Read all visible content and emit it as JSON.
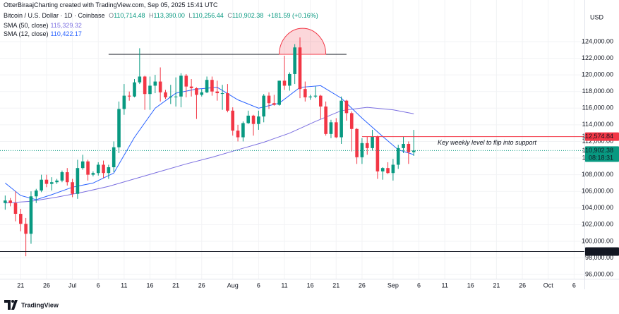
{
  "chart_data": {
    "type": "candlestick",
    "header": {
      "author": "OtterBiraajCharting created with TradingView.com, Sep 05, 2025 15:41 UTC",
      "symbol": "Bitcoin / U.S. Dollar · 1D · Coinbase",
      "ohlc": [
        {
          "label": "O",
          "value": "110,714.48"
        },
        {
          "label": "H",
          "value": "113,390.00"
        },
        {
          "label": "L",
          "value": "110,256.44"
        },
        {
          "label": "C",
          "value": "110,902.38"
        }
      ],
      "change": "+181.59 (+0.16%)"
    },
    "currency": "USD",
    "watermark": "TradingView",
    "up_color": "#089981",
    "down_color": "#f23645",
    "grid": true,
    "x": [
      "2025-06-18",
      "2025-06-19",
      "2025-06-20",
      "2025-06-21",
      "2025-06-22",
      "2025-06-23",
      "2025-06-24",
      "2025-06-25",
      "2025-06-26",
      "2025-06-27",
      "2025-06-28",
      "2025-06-29",
      "2025-06-30",
      "2025-07-01",
      "2025-07-02",
      "2025-07-03",
      "2025-07-04",
      "2025-07-05",
      "2025-07-06",
      "2025-07-07",
      "2025-07-08",
      "2025-07-09",
      "2025-07-10",
      "2025-07-11",
      "2025-07-12",
      "2025-07-13",
      "2025-07-14",
      "2025-07-15",
      "2025-07-16",
      "2025-07-17",
      "2025-07-18",
      "2025-07-19",
      "2025-07-20",
      "2025-07-21",
      "2025-07-22",
      "2025-07-23",
      "2025-07-24",
      "2025-07-25",
      "2025-07-26",
      "2025-07-27",
      "2025-07-28",
      "2025-07-29",
      "2025-07-30",
      "2025-07-31",
      "2025-08-01",
      "2025-08-02",
      "2025-08-03",
      "2025-08-04",
      "2025-08-05",
      "2025-08-06",
      "2025-08-07",
      "2025-08-08",
      "2025-08-09",
      "2025-08-10",
      "2025-08-11",
      "2025-08-12",
      "2025-08-13",
      "2025-08-14",
      "2025-08-15",
      "2025-08-16",
      "2025-08-17",
      "2025-08-18",
      "2025-08-19",
      "2025-08-20",
      "2025-08-21",
      "2025-08-22",
      "2025-08-23",
      "2025-08-24",
      "2025-08-25",
      "2025-08-26",
      "2025-08-27",
      "2025-08-28",
      "2025-08-29",
      "2025-08-30",
      "2025-08-31",
      "2025-09-01",
      "2025-09-02",
      "2025-09-03",
      "2025-09-04",
      "2025-09-05"
    ],
    "open": [
      104600,
      104900,
      104600,
      103300,
      102100,
      100900,
      105400,
      106100,
      107400,
      106900,
      107100,
      107300,
      108300,
      107100,
      105700,
      108800,
      109600,
      108000,
      108200,
      109200,
      108200,
      108900,
      111300,
      115900,
      117500,
      117400,
      119100,
      119800,
      117700,
      118700,
      119200,
      117900,
      117300,
      117400,
      117400,
      119900,
      118600,
      118400,
      117600,
      117900,
      119400,
      118000,
      117800,
      117800,
      115700,
      113300,
      112500,
      114200,
      115100,
      114100,
      115000,
      117500,
      116600,
      116400,
      119300,
      118700,
      120100,
      123300,
      118300,
      117300,
      117400,
      117500,
      116200,
      112900,
      114300,
      112500,
      116900,
      115400,
      113500,
      110100,
      111800,
      111200,
      112600,
      108400,
      108800,
      108200,
      109200,
      111200,
      111700,
      110714.48
    ],
    "high": [
      105500,
      105200,
      106000,
      103900,
      102800,
      106000,
      106300,
      108000,
      108000,
      107700,
      107500,
      108500,
      108800,
      107500,
      109800,
      110400,
      109800,
      108400,
      109500,
      109700,
      109200,
      112000,
      116800,
      118900,
      118000,
      119500,
      123200,
      119900,
      119800,
      120000,
      120900,
      118200,
      118800,
      119700,
      120200,
      120100,
      119500,
      118500,
      118300,
      119800,
      119800,
      119300,
      118800,
      118900,
      116100,
      114000,
      114400,
      115700,
      115200,
      115700,
      117700,
      117900,
      117600,
      119300,
      122300,
      120300,
      123700,
      124500,
      119200,
      117600,
      118600,
      117600,
      116800,
      114600,
      114800,
      117400,
      117000,
      115600,
      113600,
      112400,
      112600,
      113400,
      112700,
      108900,
      109500,
      109900,
      111600,
      112600,
      112000,
      113390
    ],
    "low": [
      103800,
      104200,
      102400,
      101200,
      98200,
      99700,
      104600,
      105900,
      106500,
      106100,
      106900,
      107100,
      106700,
      105300,
      105100,
      108600,
      107300,
      107800,
      107900,
      107600,
      107500,
      108300,
      110600,
      115200,
      116900,
      117300,
      118900,
      115800,
      115800,
      117800,
      116800,
      117100,
      116500,
      116200,
      116100,
      117300,
      117400,
      114700,
      117400,
      117800,
      117500,
      116900,
      115800,
      115500,
      112700,
      112000,
      112000,
      114100,
      112700,
      113400,
      114300,
      115900,
      116300,
      116300,
      118200,
      118100,
      118900,
      117200,
      116800,
      117000,
      117200,
      114700,
      112700,
      112400,
      112400,
      111700,
      114500,
      110800,
      109300,
      109300,
      110400,
      110900,
      107500,
      107400,
      108100,
      107300,
      108700,
      110600,
      109300,
      110256.44
    ],
    "close": [
      104900,
      104600,
      103300,
      102100,
      100900,
      105400,
      106100,
      107400,
      106900,
      107100,
      107300,
      108300,
      107100,
      105700,
      108800,
      109600,
      108000,
      108200,
      109200,
      108200,
      108900,
      111300,
      115900,
      117500,
      117400,
      119100,
      119800,
      117700,
      118700,
      119200,
      117900,
      117300,
      117400,
      117400,
      119900,
      118600,
      118400,
      117600,
      117900,
      119400,
      118000,
      117800,
      117800,
      115700,
      113300,
      112500,
      114200,
      115100,
      114100,
      115000,
      117500,
      116600,
      116400,
      119300,
      118700,
      120100,
      123300,
      118300,
      117300,
      117400,
      117500,
      116200,
      112900,
      114300,
      112500,
      116900,
      115400,
      113500,
      110100,
      111800,
      111200,
      112600,
      108400,
      108800,
      108200,
      109200,
      111200,
      111700,
      110700,
      110902.38
    ],
    "series": [
      {
        "name": "SMA (50, close)",
        "value_label": "115,329.32",
        "color": "#7b6fe0",
        "x": [
          "2025-06-18",
          "2025-06-23",
          "2025-06-28",
          "2025-07-03",
          "2025-07-08",
          "2025-07-13",
          "2025-07-18",
          "2025-07-23",
          "2025-07-28",
          "2025-08-02",
          "2025-08-07",
          "2025-08-12",
          "2025-08-17",
          "2025-08-22",
          "2025-08-27",
          "2025-09-01",
          "2025-09-05"
        ],
        "values": [
          104600,
          104800,
          105300,
          105900,
          106600,
          107500,
          108400,
          109300,
          110100,
          111000,
          111900,
          113000,
          114400,
          115700,
          116100,
          115800,
          115329.32
        ]
      },
      {
        "name": "SMA (12, close)",
        "value_label": "110,422.17",
        "color": "#2962ff",
        "x": [
          "2025-06-18",
          "2025-06-21",
          "2025-06-24",
          "2025-06-27",
          "2025-07-01",
          "2025-07-05",
          "2025-07-09",
          "2025-07-13",
          "2025-07-17",
          "2025-07-21",
          "2025-07-25",
          "2025-07-29",
          "2025-08-02",
          "2025-08-06",
          "2025-08-10",
          "2025-08-14",
          "2025-08-18",
          "2025-08-22",
          "2025-08-26",
          "2025-08-30",
          "2025-09-02",
          "2025-09-05"
        ],
        "values": [
          107000,
          105500,
          105000,
          105600,
          106500,
          107000,
          108200,
          112500,
          116000,
          117800,
          118300,
          118500,
          117000,
          116000,
          116600,
          118500,
          118700,
          117200,
          114800,
          112600,
          111000,
          110422.17
        ]
      }
    ],
    "xlim": [
      "2025-06-17",
      "2025-10-08"
    ],
    "xticks": [
      {
        "value": "2025-06-21",
        "label": "21"
      },
      {
        "value": "2025-06-26",
        "label": "26"
      },
      {
        "value": "2025-07-01",
        "label": "Jul"
      },
      {
        "value": "2025-07-06",
        "label": "6"
      },
      {
        "value": "2025-07-11",
        "label": "11"
      },
      {
        "value": "2025-07-16",
        "label": "16"
      },
      {
        "value": "2025-07-21",
        "label": "21"
      },
      {
        "value": "2025-07-26",
        "label": "26"
      },
      {
        "value": "2025-08-01",
        "label": "Aug"
      },
      {
        "value": "2025-08-06",
        "label": "6"
      },
      {
        "value": "2025-08-11",
        "label": "11"
      },
      {
        "value": "2025-08-16",
        "label": "16"
      },
      {
        "value": "2025-08-21",
        "label": "21"
      },
      {
        "value": "2025-08-26",
        "label": "26"
      },
      {
        "value": "2025-09-01",
        "label": "Sep"
      },
      {
        "value": "2025-09-06",
        "label": "6"
      },
      {
        "value": "2025-09-11",
        "label": "11"
      },
      {
        "value": "2025-09-16",
        "label": "16"
      },
      {
        "value": "2025-09-21",
        "label": "21"
      },
      {
        "value": "2025-09-26",
        "label": "26"
      },
      {
        "value": "2025-10-01",
        "label": "Oct"
      },
      {
        "value": "2025-10-06",
        "label": "6"
      }
    ],
    "ylim": [
      95500,
      129000
    ],
    "yticks": [
      {
        "value": 96000,
        "label": "96,000.00"
      },
      {
        "value": 98000,
        "label": "98,000.00"
      },
      {
        "value": 100000,
        "label": "100,000.00"
      },
      {
        "value": 102000,
        "label": "102,000.00"
      },
      {
        "value": 104000,
        "label": "104,000.00"
      },
      {
        "value": 106000,
        "label": "106,000.00"
      },
      {
        "value": 108000,
        "label": "108,000.00"
      },
      {
        "value": 110000,
        "label": "110,000.00"
      },
      {
        "value": 112000,
        "label": "112,000.00"
      },
      {
        "value": 114000,
        "label": "114,000.00"
      },
      {
        "value": 116000,
        "label": "116,000.00"
      },
      {
        "value": 118000,
        "label": "118,000.00"
      },
      {
        "value": 120000,
        "label": "120,000.00"
      },
      {
        "value": 122000,
        "label": "122,000.00"
      },
      {
        "value": 124000,
        "label": "124,000.00"
      }
    ],
    "price_lines": [
      {
        "value": 112574.84,
        "label": "112,574.84",
        "color": "#f23645",
        "style": "solid",
        "x": [
          "2025-08-26",
          "2025-10-08"
        ],
        "annotation": "Key weekly level to flip into support"
      },
      {
        "value": 110902.38,
        "label": "110,902.38",
        "sublabel": "08:18:31",
        "color": "#089981",
        "style": "dotted"
      },
      {
        "value": 98768.54,
        "label": "98,768.54",
        "color": "#131722",
        "style": "solid"
      }
    ],
    "drawings": [
      {
        "kind": "hline",
        "value": 122470,
        "x": [
          "2025-07-08",
          "2025-08-23"
        ],
        "color": "#131722"
      },
      {
        "kind": "arc",
        "values": [
          122470,
          125600
        ],
        "x": [
          "2025-08-10",
          "2025-08-19"
        ],
        "color": "#f23645"
      }
    ]
  }
}
